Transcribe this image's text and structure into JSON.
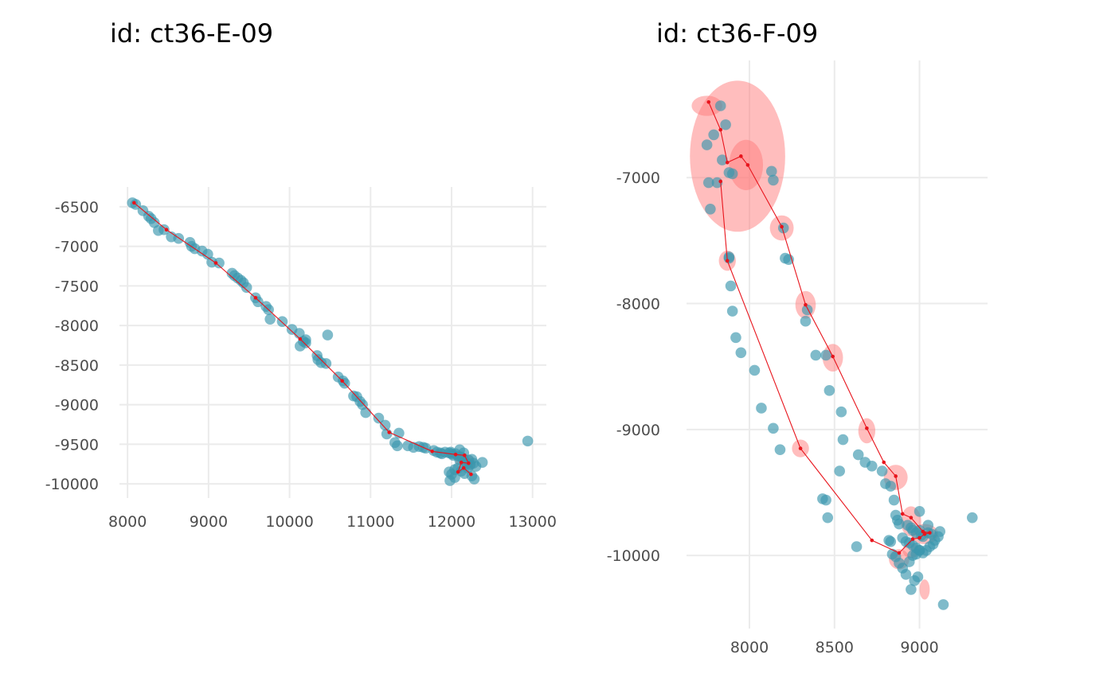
{
  "chart_data": [
    {
      "type": "scatter",
      "title": "id: ct36-E-09",
      "xlabel": "",
      "ylabel": "",
      "xlim": [
        7900,
        13170
      ],
      "ylim": [
        -10180,
        -6250
      ],
      "xticks": [
        8000,
        9000,
        10000,
        11000,
        12000,
        13000
      ],
      "xtick_labels": [
        "8000",
        "9000",
        "10000",
        "11000",
        "12000",
        "13000"
      ],
      "yticks": [
        -6500,
        -7000,
        -7500,
        -8000,
        -8500,
        -9000,
        -9500,
        -10000
      ],
      "ytick_labels": [
        "-6500",
        "-7000",
        "-7500",
        "-8000",
        "-8500",
        "-9000",
        "-9500",
        "-10000"
      ],
      "grid": true,
      "colors": {
        "points": "#3a97ad",
        "path": "#e8141c",
        "ellipse": "#ff7b7b",
        "grid": "#ebebeb"
      },
      "observations": {
        "x": [
          8060,
          8100,
          8190,
          8260,
          8290,
          8330,
          8380,
          8450,
          8540,
          8630,
          8770,
          8790,
          8830,
          8920,
          8990,
          9040,
          9130,
          9290,
          9320,
          9360,
          9400,
          9430,
          9470,
          9580,
          9610,
          9710,
          9740,
          9760,
          9910,
          10030,
          10120,
          10130,
          10170,
          10200,
          10200,
          10340,
          10350,
          10390,
          10450,
          10470,
          10600,
          10660,
          10680,
          10790,
          10830,
          10870,
          10900,
          10940,
          11100,
          11180,
          11200,
          11300,
          11330,
          11350,
          11460,
          11530,
          11600,
          11650,
          11680,
          11780,
          11820,
          11860,
          11880,
          11920,
          11970,
          11990,
          12000,
          12020,
          12050,
          12080,
          12100,
          12120,
          12140,
          12170,
          12190,
          12210,
          12230,
          12250,
          12270,
          12300,
          12380,
          11970,
          12000,
          12040,
          12080,
          12120,
          12160,
          12200,
          12250,
          12940,
          11980,
          12040,
          12280,
          12100,
          12150
        ],
        "y": [
          -6450,
          -6470,
          -6550,
          -6620,
          -6650,
          -6700,
          -6800,
          -6790,
          -6880,
          -6900,
          -6950,
          -7000,
          -7030,
          -7060,
          -7100,
          -7200,
          -7210,
          -7340,
          -7370,
          -7400,
          -7430,
          -7460,
          -7520,
          -7650,
          -7700,
          -7760,
          -7800,
          -7920,
          -7950,
          -8050,
          -8100,
          -8260,
          -8200,
          -8220,
          -8180,
          -8380,
          -8430,
          -8470,
          -8480,
          -8120,
          -8650,
          -8700,
          -8730,
          -8890,
          -8900,
          -8960,
          -9000,
          -9100,
          -9170,
          -9260,
          -9370,
          -9480,
          -9520,
          -9360,
          -9520,
          -9540,
          -9530,
          -9540,
          -9550,
          -9580,
          -9600,
          -9610,
          -9620,
          -9600,
          -9610,
          -9600,
          -9620,
          -9640,
          -9620,
          -9650,
          -9700,
          -9660,
          -9680,
          -9720,
          -9750,
          -9700,
          -9760,
          -9690,
          -9740,
          -9780,
          -9730,
          -9850,
          -9880,
          -9820,
          -9800,
          -9840,
          -9870,
          -9800,
          -9900,
          -9460,
          -9960,
          -9920,
          -9940,
          -9570,
          -9610
        ]
      },
      "fitted_path": {
        "x": [
          8080,
          8480,
          9090,
          9580,
          10130,
          10650,
          11230,
          11760,
          12050,
          12160,
          12210,
          12120,
          12080,
          12150,
          12240
        ],
        "y": [
          -6450,
          -6790,
          -7210,
          -7650,
          -8170,
          -8700,
          -9350,
          -9590,
          -9630,
          -9640,
          -9740,
          -9730,
          -9850,
          -9800,
          -9880
        ]
      },
      "ellipses": [
        {
          "x": 12200,
          "y": -9720,
          "rx": 90,
          "ry": 80
        },
        {
          "x": 12230,
          "y": -9760,
          "rx": 60,
          "ry": 60
        },
        {
          "x": 12110,
          "y": -9720,
          "rx": 60,
          "ry": 50
        }
      ]
    },
    {
      "type": "scatter",
      "title": "id: ct36-F-09",
      "xlabel": "",
      "ylabel": "",
      "xlim": [
        7630,
        9400
      ],
      "ylim": [
        -10580,
        -6070
      ],
      "xticks": [
        8000,
        8500,
        9000
      ],
      "xtick_labels": [
        "8000",
        "8500",
        "9000"
      ],
      "yticks": [
        -7000,
        -8000,
        -9000,
        -10000
      ],
      "ytick_labels": [
        "-7000",
        "-8000",
        "-9000",
        "-10000"
      ],
      "grid": true,
      "colors": {
        "points": "#3a97ad",
        "path": "#e8141c",
        "ellipse": "#ff7b7b",
        "grid": "#ebebeb"
      },
      "observations": {
        "x": [
          7830,
          7860,
          7790,
          7840,
          7880,
          7900,
          7750,
          7810,
          7760,
          7770,
          7880,
          7880,
          7890,
          7900,
          7920,
          7950,
          8030,
          8070,
          8140,
          8180,
          8130,
          8140,
          8200,
          8210,
          8230,
          8340,
          8330,
          8390,
          8450,
          8470,
          8540,
          8550,
          8640,
          8680,
          8720,
          8780,
          8800,
          8830,
          8850,
          8860,
          8870,
          8880,
          8930,
          8950,
          8960,
          8980,
          9000,
          9010,
          9020,
          9050,
          9070,
          8900,
          8920,
          8940,
          8960,
          8980,
          9000,
          9020,
          9040,
          9060,
          9080,
          9090,
          9110,
          8820,
          8840,
          8860,
          8880,
          8900,
          8920,
          8940,
          8960,
          8980,
          9000,
          8950,
          8970,
          8990,
          9140,
          9310,
          8530,
          8430,
          8450,
          8460,
          8630,
          8830,
          9120,
          9050,
          9000
        ],
        "y": [
          -6430,
          -6580,
          -6660,
          -6860,
          -6960,
          -6970,
          -6740,
          -7040,
          -7040,
          -7250,
          -7630,
          -7640,
          -7860,
          -8060,
          -8270,
          -8390,
          -8530,
          -8830,
          -8990,
          -9160,
          -6950,
          -7020,
          -7400,
          -7640,
          -7650,
          -8050,
          -8140,
          -8410,
          -8410,
          -8690,
          -8860,
          -9080,
          -9200,
          -9260,
          -9290,
          -9330,
          -9430,
          -9450,
          -9560,
          -9680,
          -9720,
          -9750,
          -9760,
          -9780,
          -9800,
          -9820,
          -9800,
          -9840,
          -9850,
          -9820,
          -9830,
          -9860,
          -9890,
          -9900,
          -9920,
          -9940,
          -9960,
          -9980,
          -9960,
          -9930,
          -9910,
          -9880,
          -9850,
          -9880,
          -9990,
          -10010,
          -10060,
          -10100,
          -10150,
          -10050,
          -10000,
          -9990,
          -9960,
          -10270,
          -10200,
          -10170,
          -10390,
          -9700,
          -9330,
          -9550,
          -9560,
          -9700,
          -9930,
          -9890,
          -9810,
          -9760,
          -9650
        ]
      },
      "fitted_path": {
        "x": [
          7760,
          7830,
          7870,
          7950,
          7990,
          8190,
          8330,
          8490,
          8690,
          8790,
          8860,
          8900,
          8950,
          9020,
          9060,
          9030,
          9000,
          8960,
          8880,
          8720,
          8300,
          7870,
          7830
        ],
        "y": [
          -6400,
          -6620,
          -6880,
          -6830,
          -6900,
          -7390,
          -8010,
          -8420,
          -8990,
          -9260,
          -9370,
          -9670,
          -9700,
          -9810,
          -9820,
          -9830,
          -9860,
          -9870,
          -9980,
          -9880,
          -9150,
          -7660,
          -7030
        ]
      },
      "ellipses": [
        {
          "x": 7930,
          "y": -6830,
          "rx": 280,
          "ry": 600
        },
        {
          "x": 7980,
          "y": -6900,
          "rx": 100,
          "ry": 200
        },
        {
          "x": 7750,
          "y": -6430,
          "rx": 90,
          "ry": 80
        },
        {
          "x": 8190,
          "y": -7400,
          "rx": 70,
          "ry": 100
        },
        {
          "x": 8330,
          "y": -8010,
          "rx": 60,
          "ry": 110
        },
        {
          "x": 8490,
          "y": -8430,
          "rx": 60,
          "ry": 110
        },
        {
          "x": 8690,
          "y": -9010,
          "rx": 50,
          "ry": 100
        },
        {
          "x": 8860,
          "y": -9380,
          "rx": 70,
          "ry": 100
        },
        {
          "x": 8300,
          "y": -9150,
          "rx": 50,
          "ry": 70
        },
        {
          "x": 7870,
          "y": -7660,
          "rx": 50,
          "ry": 80
        },
        {
          "x": 8950,
          "y": -9730,
          "rx": 60,
          "ry": 120
        },
        {
          "x": 9030,
          "y": -9830,
          "rx": 80,
          "ry": 80
        },
        {
          "x": 9030,
          "y": -10270,
          "rx": 30,
          "ry": 80
        },
        {
          "x": 8880,
          "y": -10030,
          "rx": 60,
          "ry": 80
        },
        {
          "x": 8950,
          "y": -9960,
          "rx": 50,
          "ry": 60
        }
      ]
    }
  ]
}
